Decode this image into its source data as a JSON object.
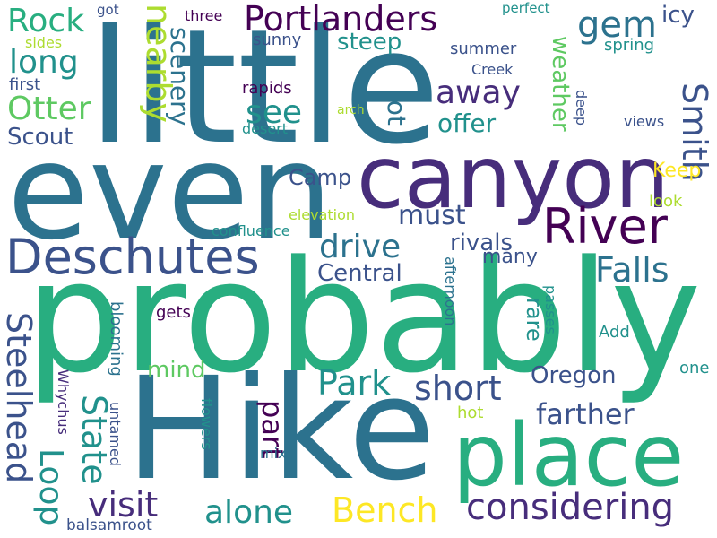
{
  "palette": {
    "dark_purple": "#440154",
    "purple": "#472d7b",
    "indigo": "#3b528b",
    "blue": "#2c728e",
    "teal": "#21918c",
    "green_teal": "#28ae80",
    "green": "#5ec962",
    "lime": "#addc30",
    "yellow": "#fde725"
  },
  "words": {
    "little": "little",
    "even": "even",
    "probably": "probably",
    "hike": "Hike",
    "canyon": "canyon",
    "place": "place",
    "deschutes": "Deschutes",
    "river": "River",
    "portlanders": "Portlanders",
    "steelhead": "Steelhead",
    "considering": "considering",
    "bench": "Bench",
    "alone": "alone",
    "visit": "visit",
    "loop": "Loop",
    "state": "State",
    "park": "Park",
    "falls": "Falls",
    "smith": "Smith",
    "nearby": "nearby",
    "rock": "Rock",
    "long": "long",
    "otter": "Otter",
    "scout": "Scout",
    "gem": "gem",
    "away": "away",
    "see": "see",
    "short": "short",
    "farther": "farther",
    "drive": "drive",
    "must": "must",
    "part": "part",
    "oregon": "Oregon",
    "central": "Central",
    "rivals": "rivals",
    "scenery": "scenery",
    "offer": "offer",
    "weather": "weather",
    "steep": "steep",
    "lot": "lot",
    "camp": "Camp",
    "icy": "icy",
    "keep": "Keep",
    "many": "many",
    "rare": "rare",
    "mind": "mind",
    "sunny": "sunny",
    "summer": "summer",
    "spring": "spring",
    "creek": "Creek",
    "three": "three",
    "got": "got",
    "perfect": "perfect",
    "sides": "sides",
    "first": "first",
    "rapids": "rapids",
    "arch": "arch",
    "desert": "desert",
    "deep": "deep",
    "views": "views",
    "look": "look",
    "elevation": "elevation",
    "confluence": "confluence",
    "afternoon": "afternoon",
    "passes": "passes",
    "add": "Add",
    "one": "one",
    "gets": "gets",
    "blooming": "blooming",
    "untamed": "untamed",
    "whychus": "Whychus",
    "flowers": "flowers",
    "hot": "hot",
    "mix": "mix",
    "balsamroot": "balsamroot"
  }
}
